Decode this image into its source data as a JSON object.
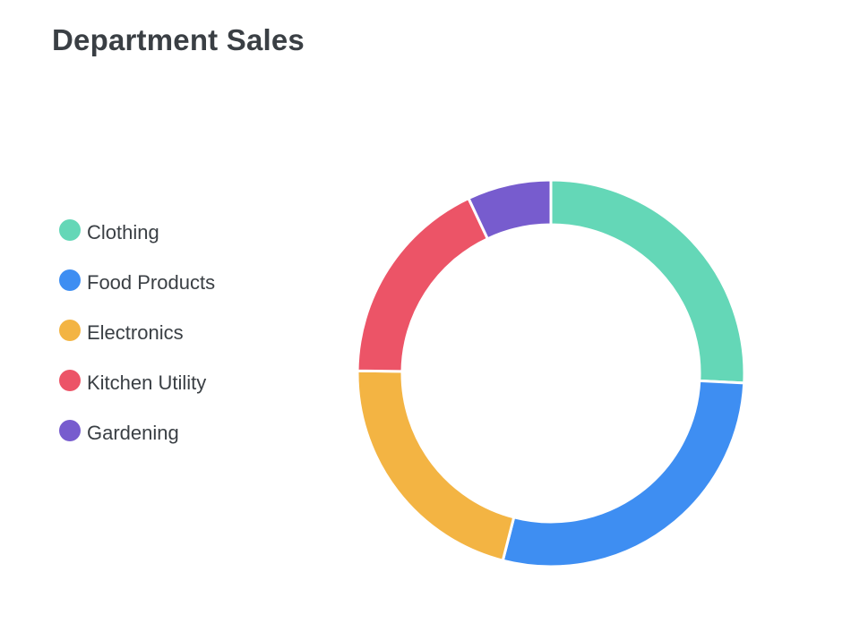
{
  "title": "Department Sales",
  "chart_data": {
    "type": "pie",
    "variant": "donut",
    "title": "Department Sales",
    "legend_placement": "left",
    "categories": [
      "Clothing",
      "Food Products",
      "Electronics",
      "Kitchen Utility",
      "Gardening"
    ],
    "values": [
      25.8,
      28.2,
      21.2,
      17.8,
      7.0
    ],
    "colors": [
      "#64d7b7",
      "#3e8ef2",
      "#f3b443",
      "#ec5467",
      "#775cce"
    ]
  }
}
